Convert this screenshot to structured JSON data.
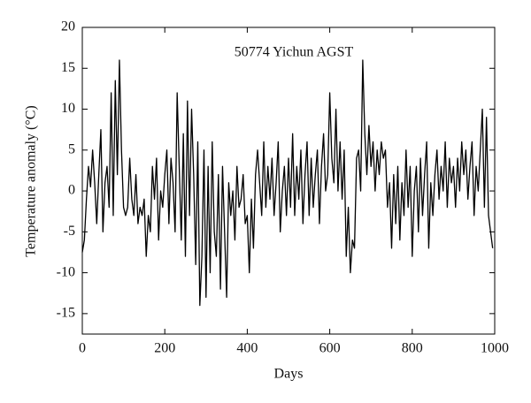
{
  "chart_data": {
    "type": "line",
    "annotation": "50774 Yichun AGST",
    "xlabel": "Days",
    "ylabel": "Temperature anomaly (°C)",
    "xlim": [
      0,
      1000
    ],
    "xticks": [
      0,
      200,
      400,
      600,
      800,
      1000
    ],
    "ylim": [
      -17.5,
      20
    ],
    "yticks": [
      -15,
      -10,
      -5,
      0,
      5,
      10,
      15,
      20
    ],
    "grid": false,
    "x": [
      0,
      5,
      10,
      15,
      20,
      25,
      30,
      35,
      40,
      45,
      50,
      55,
      60,
      65,
      70,
      75,
      80,
      85,
      90,
      95,
      100,
      105,
      110,
      115,
      120,
      125,
      130,
      135,
      140,
      145,
      150,
      155,
      160,
      165,
      170,
      175,
      180,
      185,
      190,
      195,
      200,
      205,
      210,
      215,
      220,
      225,
      230,
      235,
      240,
      245,
      250,
      255,
      260,
      265,
      270,
      275,
      280,
      285,
      290,
      295,
      300,
      305,
      310,
      315,
      320,
      325,
      330,
      335,
      340,
      345,
      350,
      355,
      360,
      365,
      370,
      375,
      380,
      385,
      390,
      395,
      400,
      405,
      410,
      415,
      420,
      425,
      430,
      435,
      440,
      445,
      450,
      455,
      460,
      465,
      470,
      475,
      480,
      485,
      490,
      495,
      500,
      505,
      510,
      515,
      520,
      525,
      530,
      535,
      540,
      545,
      550,
      555,
      560,
      565,
      570,
      575,
      580,
      585,
      590,
      595,
      600,
      605,
      610,
      615,
      620,
      625,
      630,
      635,
      640,
      645,
      650,
      655,
      660,
      665,
      670,
      675,
      680,
      685,
      690,
      695,
      700,
      705,
      710,
      715,
      720,
      725,
      730,
      735,
      740,
      745,
      750,
      755,
      760,
      765,
      770,
      775,
      780,
      785,
      790,
      795,
      800,
      805,
      810,
      815,
      820,
      825,
      830,
      835,
      840,
      845,
      850,
      855,
      860,
      865,
      870,
      875,
      880,
      885,
      890,
      895,
      900,
      905,
      910,
      915,
      920,
      925,
      930,
      935,
      940,
      945,
      950,
      955,
      960,
      965,
      970,
      975,
      980,
      985,
      990,
      995
    ],
    "series": [
      {
        "color": "#000000",
        "values": [
          -7.5,
          -6,
          -1,
          3,
          0.5,
          5,
          1,
          -4,
          2,
          7.5,
          -5,
          1,
          3,
          -2,
          12,
          -3,
          13.5,
          2,
          16,
          5,
          -2,
          -3,
          -2,
          4,
          -1,
          -3,
          2,
          -4,
          -2,
          -3,
          -1,
          -8,
          -3,
          -5,
          3,
          -1,
          4,
          -6,
          0,
          -2,
          2,
          5,
          -4,
          4,
          1,
          -5,
          12,
          3,
          -6,
          7,
          -8,
          11,
          -3,
          10,
          2,
          -9,
          6,
          -14,
          -8,
          5,
          -13,
          3,
          -10,
          6,
          -5,
          -8,
          2,
          -12,
          3,
          -5,
          -13,
          1,
          -3,
          0,
          -6,
          3,
          -2,
          -1,
          2,
          -4,
          -3,
          -10,
          -1,
          -7,
          2,
          5,
          1,
          -3,
          6,
          -2,
          3,
          -1,
          4,
          -3,
          1,
          6,
          -5,
          0,
          3,
          -3,
          4,
          -2,
          7,
          -3,
          3,
          -1,
          5,
          -4,
          2,
          6,
          -3,
          4,
          -2,
          2,
          5,
          -4,
          3,
          7,
          0,
          2,
          12,
          4,
          1,
          10,
          0,
          6,
          -1,
          5,
          -8,
          -2,
          -10,
          -6,
          -7,
          4,
          5,
          0,
          16,
          7,
          2,
          8,
          3,
          6,
          0,
          5,
          2,
          6,
          4,
          5,
          -2,
          1,
          -7,
          2,
          -4,
          3,
          -6,
          1,
          -3,
          5,
          -2,
          3,
          -8,
          0,
          3,
          -5,
          4,
          -3,
          2,
          6,
          -7,
          1,
          -3,
          2,
          5,
          -1,
          3,
          0,
          6,
          -2,
          4,
          1,
          3,
          -2,
          4,
          0,
          6,
          2,
          5,
          -1,
          3,
          6,
          -3,
          3,
          0,
          5,
          10,
          -2,
          9,
          -3,
          -5,
          -7
        ]
      }
    ]
  }
}
